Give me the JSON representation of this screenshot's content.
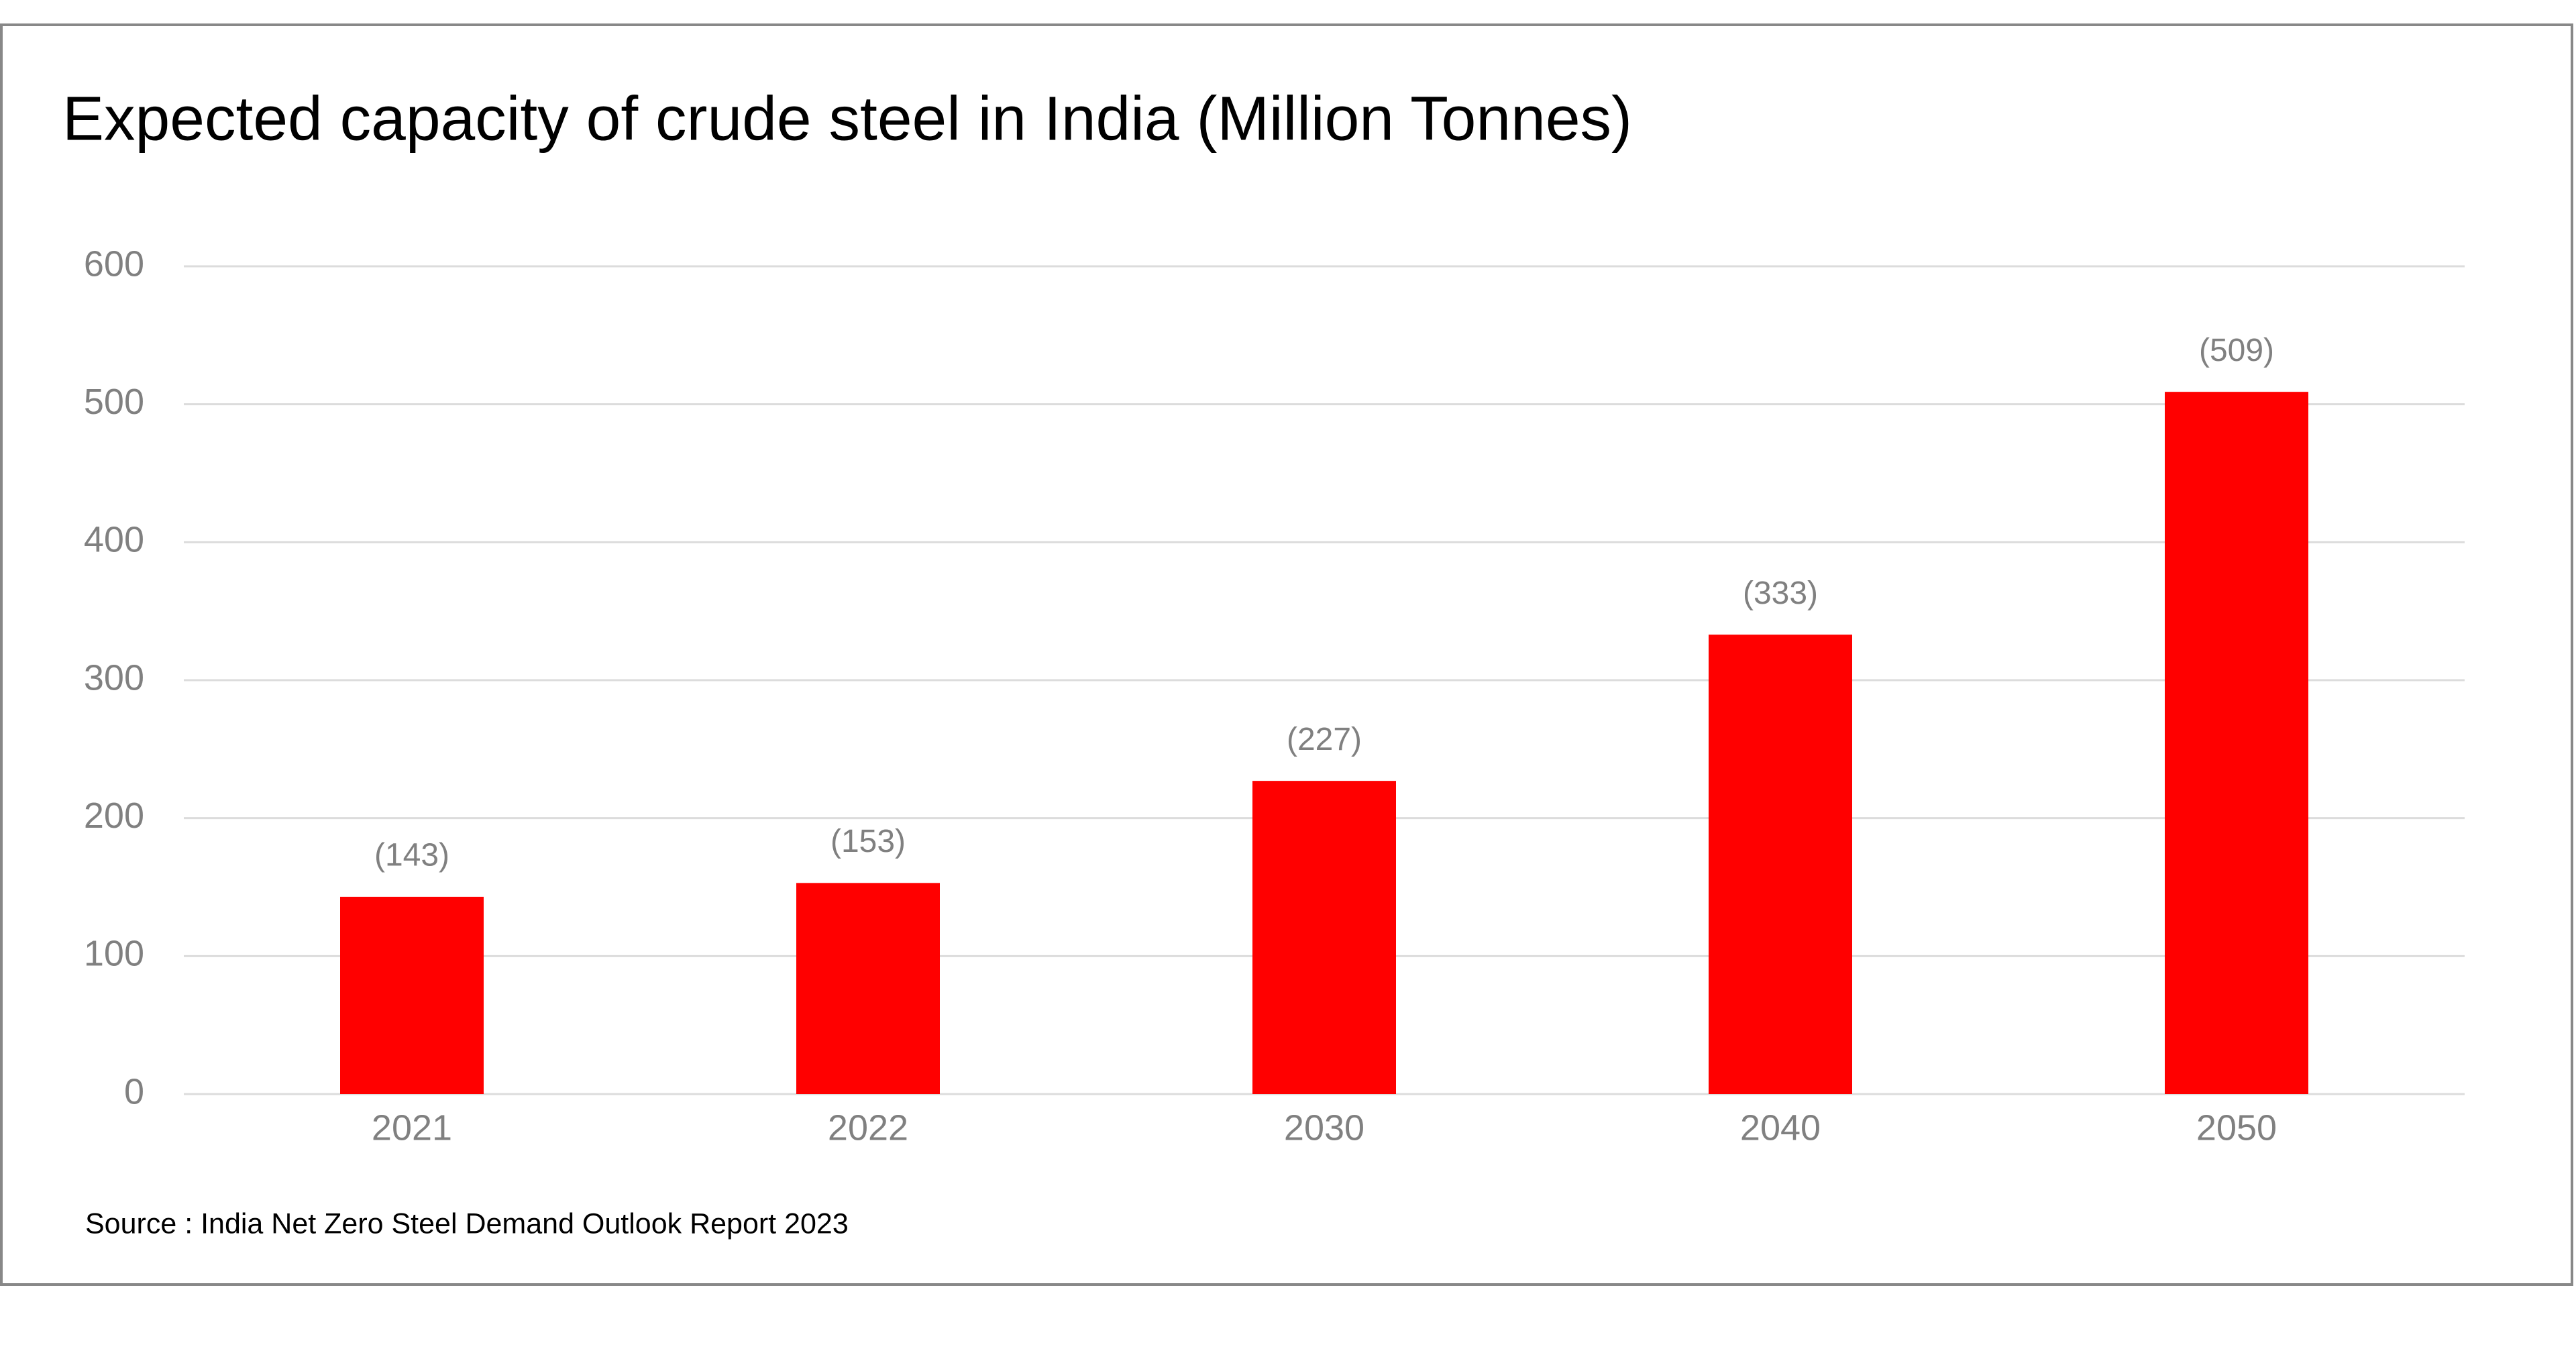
{
  "chart_data": {
    "type": "bar",
    "title": "Expected capacity of crude steel in India (Million Tonnes)",
    "categories": [
      "2021",
      "2022",
      "2030",
      "2040",
      "2050"
    ],
    "values": [
      143,
      153,
      227,
      333,
      509
    ],
    "value_labels": [
      "(143)",
      "(153)",
      "(227)",
      "(333)",
      "(509)"
    ],
    "color": "#ff0000",
    "ylim": [
      0,
      600
    ],
    "yticks": [
      0,
      100,
      200,
      300,
      400,
      500,
      600
    ],
    "grid": true,
    "source": "Source : India Net Zero Steel Demand Outlook Report 2023"
  }
}
